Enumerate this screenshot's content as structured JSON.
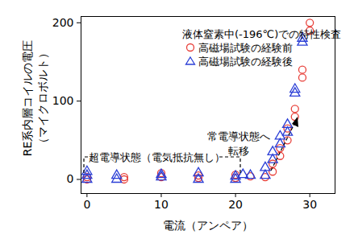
{
  "chart_data": {
    "type": "scatter",
    "x_label": "電流（アンペア）",
    "y_label": "RE系内層コイルの電圧\n（マイクロボルト）",
    "xlim": [
      -0.8,
      33.4
    ],
    "ylim": [
      -18,
      208
    ],
    "xticks": [
      0,
      10,
      20,
      30
    ],
    "yticks": [
      0,
      100,
      200
    ],
    "grid": false,
    "legend": "upper right",
    "annotations": [
      "液体窒素中(-196℃)での特性検査",
      "超電導状態（電気抵抗無し）",
      "常電導状態へ\n転移"
    ],
    "series": [
      {
        "name": "高磁場試験の経験前",
        "color": "#e8403a",
        "marker": "circle",
        "x": [
          0,
          0,
          5,
          5,
          10,
          10,
          15,
          15,
          20,
          20,
          22,
          24,
          25,
          25,
          26,
          26,
          27,
          27,
          28,
          28,
          29,
          29,
          30,
          30
        ],
        "values": [
          0,
          3,
          0,
          3,
          3,
          8,
          2,
          5,
          2,
          6,
          4,
          3,
          10,
          20,
          30,
          40,
          50,
          65,
          80,
          90,
          130,
          140,
          190,
          200
        ]
      },
      {
        "name": "高磁場試験の経験後",
        "color": "#2b3fd6",
        "marker": "triangle",
        "x": [
          0,
          0,
          0,
          4,
          4,
          10,
          10,
          15,
          15,
          20,
          20,
          21,
          22,
          24,
          24,
          25,
          25,
          26,
          26,
          27,
          27,
          28,
          28,
          29,
          29
        ],
        "values": [
          0,
          5,
          10,
          0,
          5,
          3,
          6,
          0,
          8,
          0,
          4,
          6,
          5,
          5,
          15,
          25,
          35,
          45,
          55,
          60,
          70,
          110,
          115,
          175,
          180
        ]
      }
    ]
  }
}
